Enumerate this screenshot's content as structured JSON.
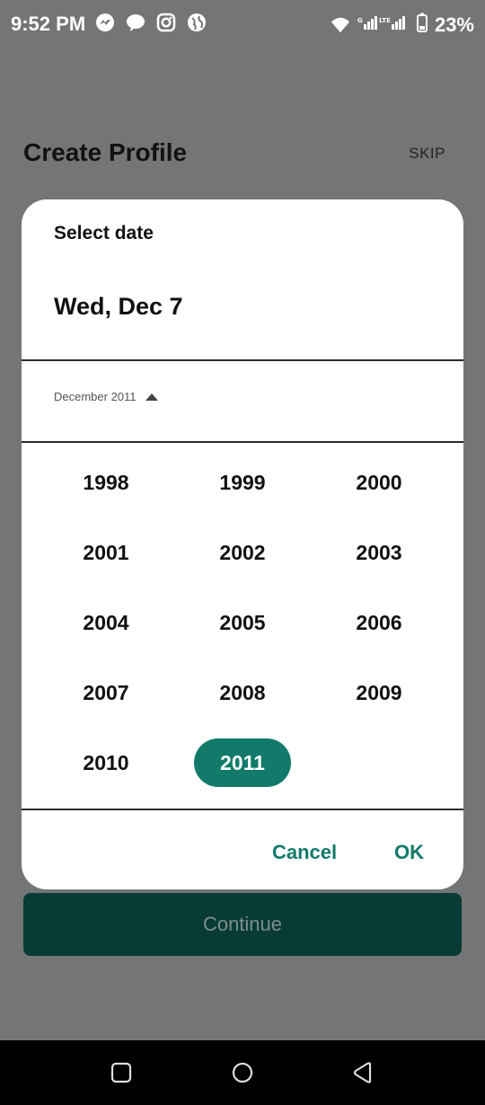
{
  "status_bar": {
    "time": "9:52 PM",
    "battery": "23%",
    "icons": [
      "messenger-icon",
      "chat-icon",
      "instagram-icon",
      "globe-icon",
      "wifi-icon",
      "signal-icon",
      "battery-icon"
    ]
  },
  "background": {
    "title": "Create Profile",
    "skip_label": "SKIP",
    "continue_label": "Continue"
  },
  "dialog": {
    "header_label": "Select date",
    "selected_date": "Wed, Dec 7",
    "month_year_label": "December 2011",
    "years": [
      "1998",
      "1999",
      "2000",
      "2001",
      "2002",
      "2003",
      "2004",
      "2005",
      "2006",
      "2007",
      "2008",
      "2009",
      "2010",
      "2011"
    ],
    "selected_year": "2011",
    "cancel_label": "Cancel",
    "ok_label": "OK"
  },
  "colors": {
    "accent": "#117a6a",
    "scrim": "#747576",
    "continue_bg": "#083a36"
  },
  "nav_bar": {
    "buttons": [
      "recents-icon",
      "home-icon",
      "back-icon"
    ]
  }
}
